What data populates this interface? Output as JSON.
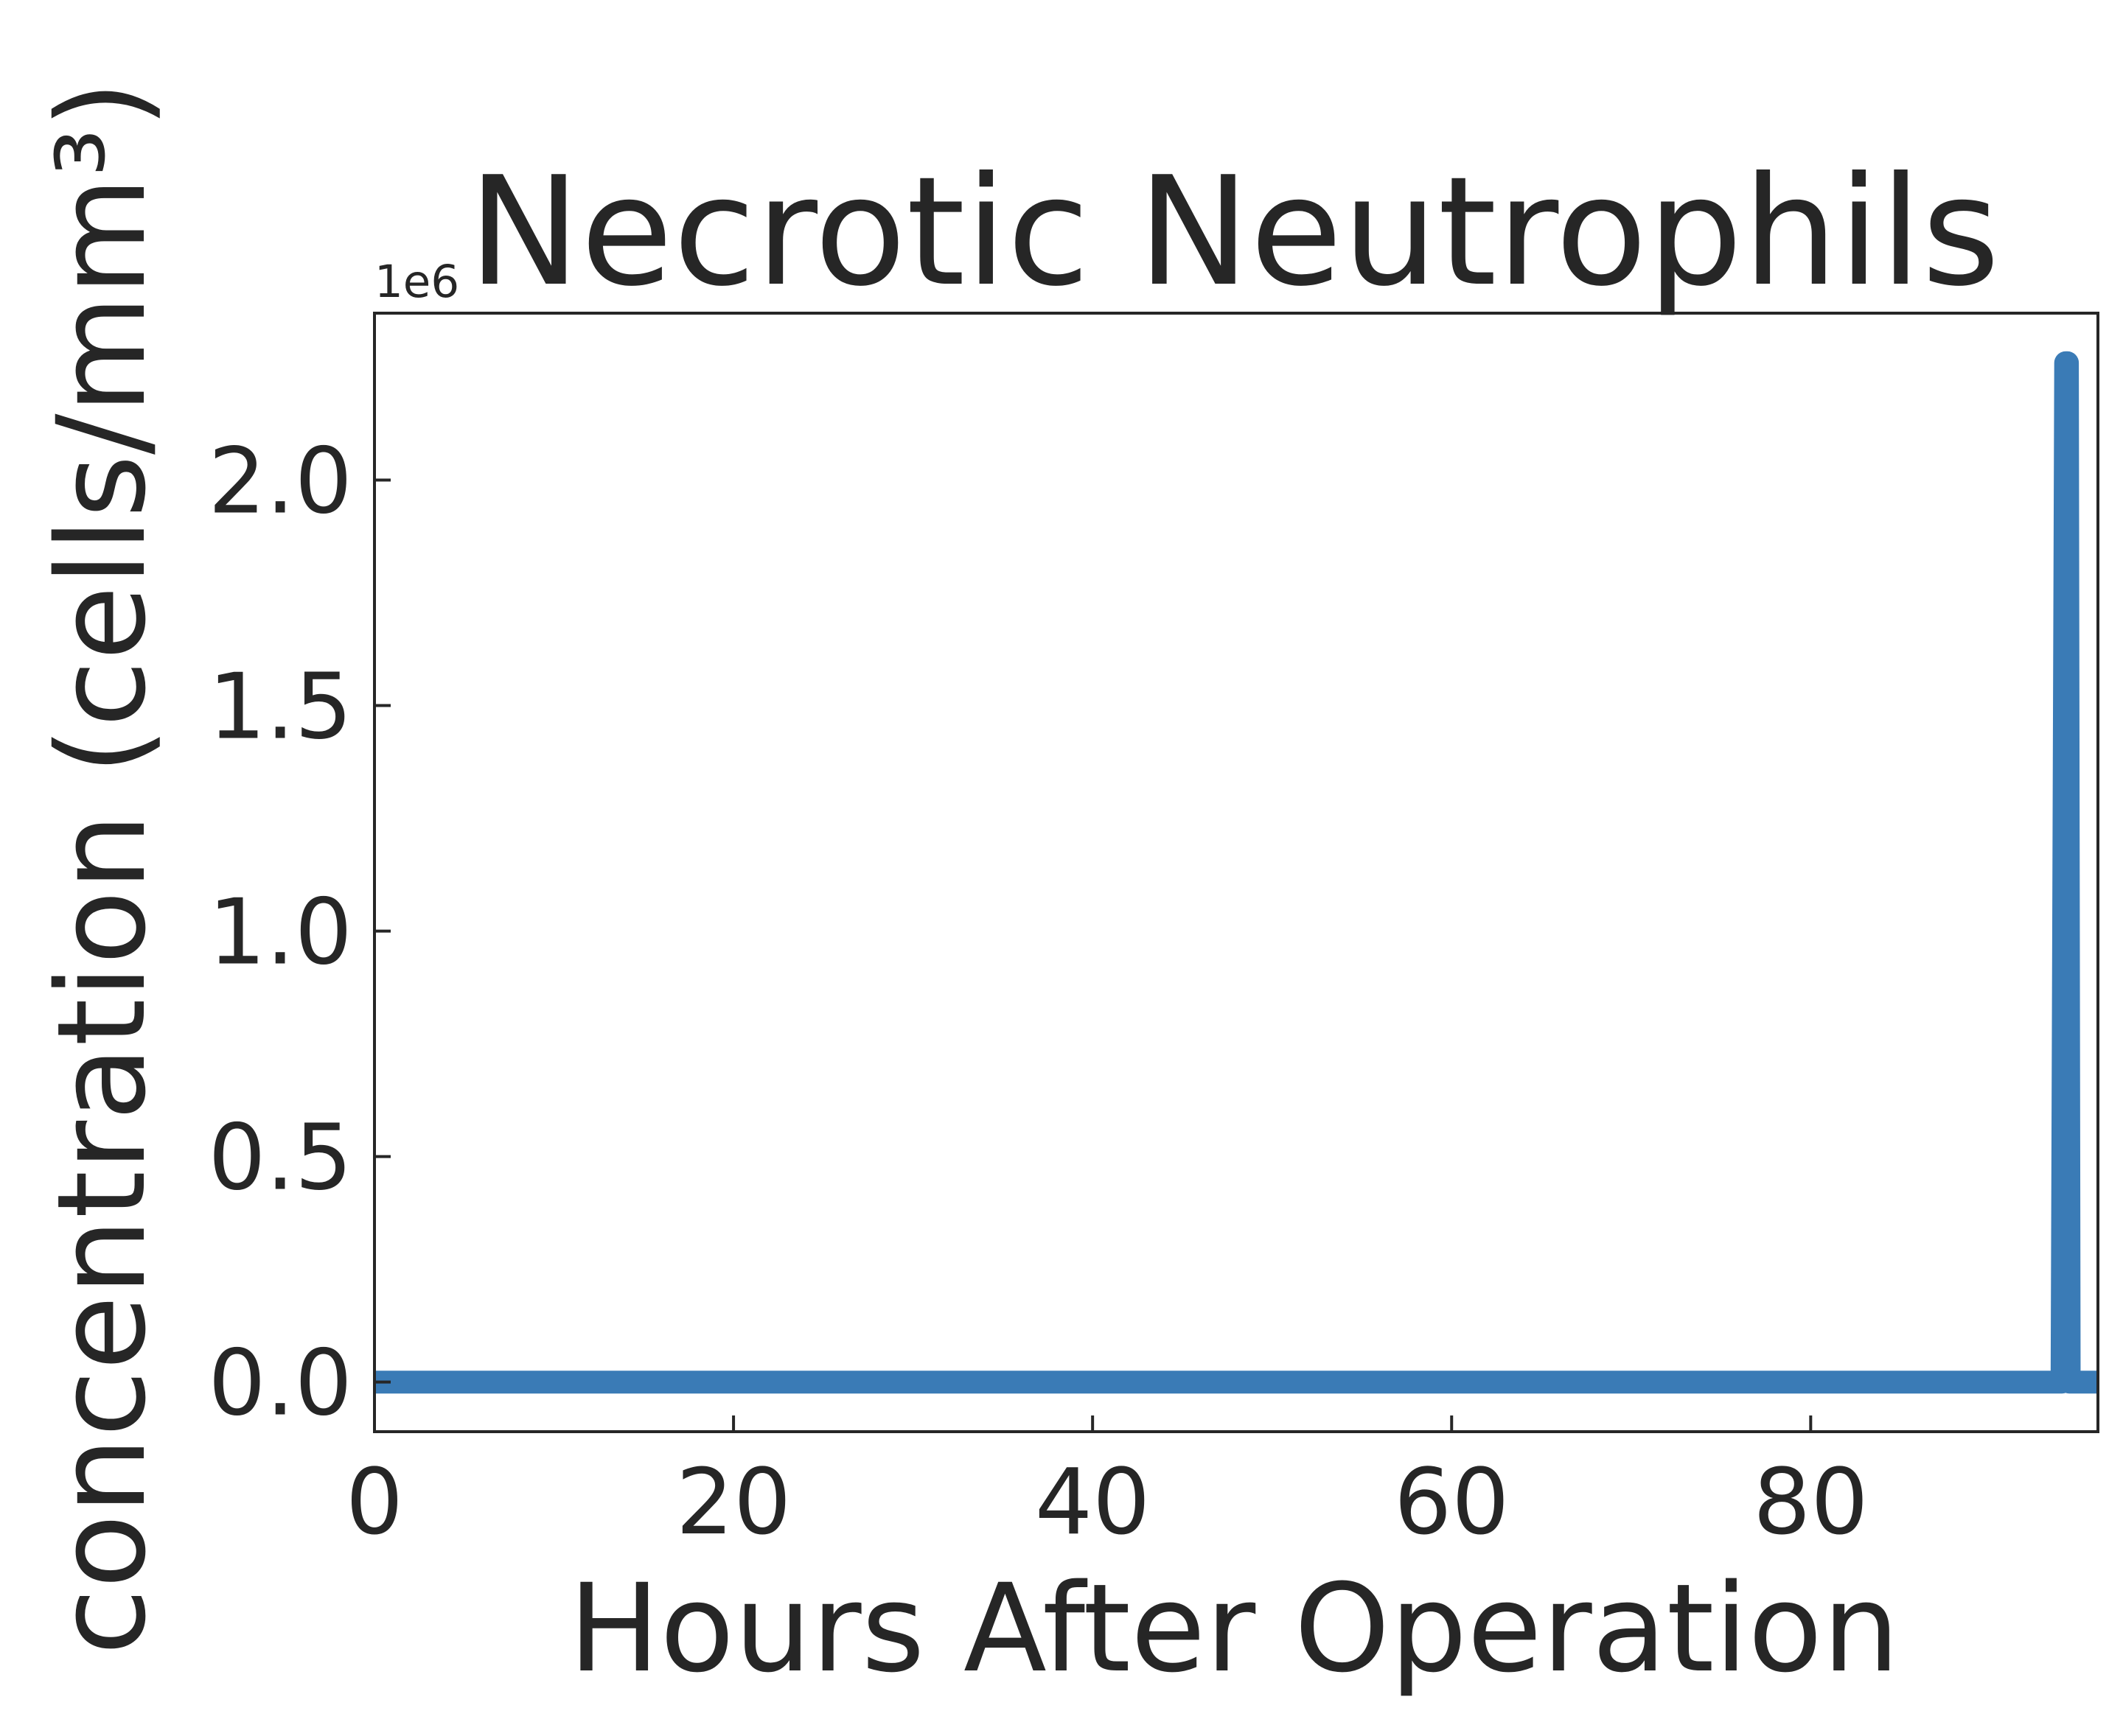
{
  "chart_data": {
    "type": "line",
    "title": "Necrotic Neutrophils",
    "xlabel": "Hours After Operation",
    "ylabel": "concentration (cells/mm³)",
    "y_offset_label": "1e6",
    "xlim": [
      0,
      96
    ],
    "ylim": [
      -0.11,
      2.37
    ],
    "x_ticks": [
      0,
      20,
      40,
      60,
      80
    ],
    "x_tick_labels": [
      "0",
      "20",
      "40",
      "60",
      "80"
    ],
    "y_ticks": [
      0.0,
      0.5,
      1.0,
      1.5,
      2.0
    ],
    "y_tick_labels": [
      "0.0",
      "0.5",
      "1.0",
      "1.5",
      "2.0"
    ],
    "grid": false,
    "legend": "none",
    "series": [
      {
        "color": "#3a7bb6",
        "x": [
          0,
          94,
          94.2,
          94.3,
          94.4,
          94.5,
          96
        ],
        "y": [
          0,
          0,
          2.26,
          2.26,
          0,
          0,
          0
        ]
      }
    ]
  }
}
